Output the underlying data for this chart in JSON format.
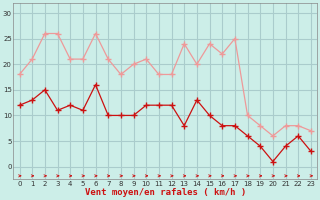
{
  "x": [
    0,
    1,
    2,
    3,
    4,
    5,
    6,
    7,
    8,
    9,
    10,
    11,
    12,
    13,
    14,
    15,
    16,
    17,
    18,
    19,
    20,
    21,
    22,
    23
  ],
  "wind_avg": [
    12,
    13,
    15,
    11,
    12,
    11,
    16,
    10,
    10,
    10,
    12,
    12,
    12,
    8,
    13,
    10,
    8,
    8,
    6,
    4,
    1,
    4,
    6,
    3
  ],
  "wind_gust": [
    18,
    21,
    26,
    26,
    21,
    21,
    26,
    21,
    18,
    20,
    21,
    18,
    18,
    24,
    20,
    24,
    22,
    25,
    10,
    8,
    6,
    8,
    8,
    7
  ],
  "bg_color": "#cceee8",
  "grid_color": "#aacccc",
  "avg_color": "#cc1111",
  "gust_color": "#ee9999",
  "arrow_color": "#cc1111",
  "xlabel": "Vent moyen/en rafales ( km/h )",
  "yticks": [
    0,
    5,
    10,
    15,
    20,
    25,
    30
  ],
  "xticks": [
    0,
    1,
    2,
    3,
    4,
    5,
    6,
    7,
    8,
    9,
    10,
    11,
    12,
    13,
    14,
    15,
    16,
    17,
    18,
    19,
    20,
    21,
    22,
    23
  ],
  "ylim": [
    -2.5,
    32
  ],
  "xlim": [
    -0.5,
    23.5
  ]
}
